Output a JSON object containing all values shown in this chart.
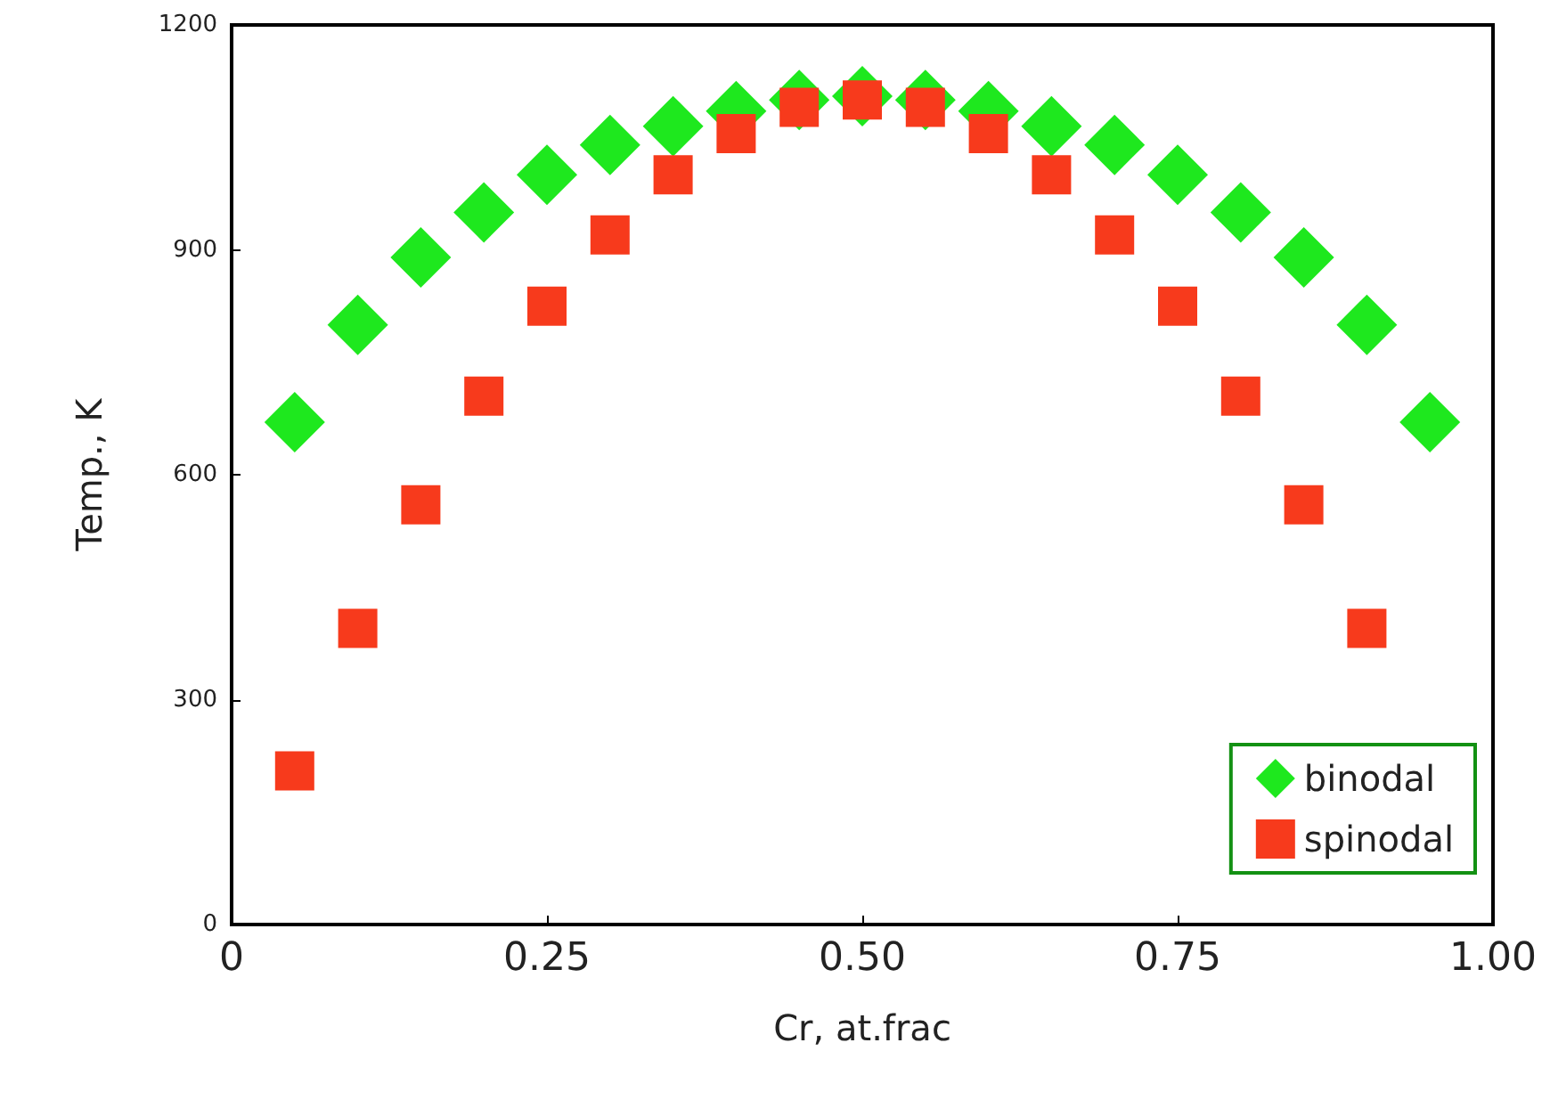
{
  "chart_data": {
    "type": "scatter",
    "xlabel": "Cr, at.frac",
    "ylabel": "Temp., K",
    "xlim": [
      0,
      1
    ],
    "xticks": [
      {
        "value": 0,
        "label": "0"
      },
      {
        "value": 0.25,
        "label": "0.25"
      },
      {
        "value": 0.5,
        "label": "0.50"
      },
      {
        "value": 0.75,
        "label": "0.75"
      },
      {
        "value": 1,
        "label": "1.00"
      }
    ],
    "ylim": [
      0,
      1200
    ],
    "yticks": [
      0,
      300,
      600,
      900,
      1200
    ],
    "grid": false,
    "legend": "bottom right",
    "series": [
      {
        "name": "binodal",
        "color": "#1ee81e",
        "marker": "diamond",
        "x": [
          0.05,
          0.1,
          0.15,
          0.2,
          0.25,
          0.3,
          0.35,
          0.4,
          0.45,
          0.5,
          0.55,
          0.6,
          0.65,
          0.7,
          0.75,
          0.8,
          0.85,
          0.9,
          0.95
        ],
        "values": [
          670,
          800,
          890,
          950,
          1000,
          1040,
          1065,
          1085,
          1100,
          1105,
          1100,
          1085,
          1065,
          1040,
          1000,
          950,
          890,
          800,
          670
        ]
      },
      {
        "name": "spinodal",
        "color": "#f73a1c",
        "marker": "square",
        "x": [
          0.05,
          0.1,
          0.15,
          0.2,
          0.25,
          0.3,
          0.35,
          0.4,
          0.45,
          0.5,
          0.55,
          0.6,
          0.65,
          0.7,
          0.75,
          0.8,
          0.85,
          0.9
        ],
        "values": [
          205,
          395,
          560,
          705,
          825,
          920,
          1000,
          1055,
          1090,
          1100,
          1090,
          1055,
          1000,
          920,
          825,
          705,
          560,
          395
        ]
      }
    ]
  }
}
